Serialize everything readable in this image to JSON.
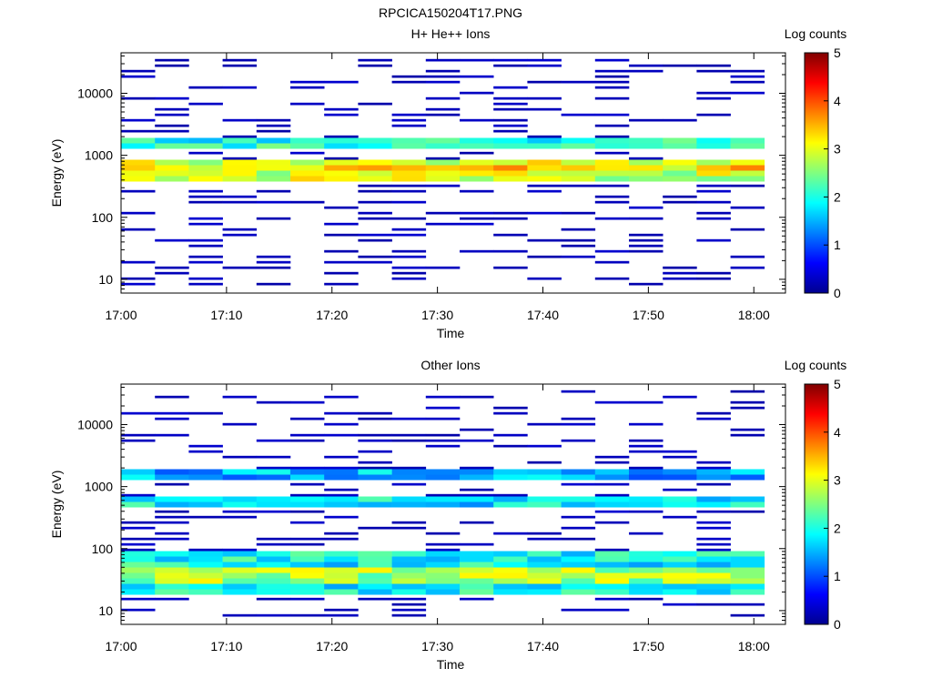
{
  "figure_title": "RPCICA150204T17.PNG",
  "chart_data": [
    {
      "type": "heatmap",
      "title": "H+ He++ Ions",
      "xlabel": "Time",
      "ylabel": "Energy (eV)",
      "x_ticks": [
        "17:00",
        "17:10",
        "17:20",
        "17:30",
        "17:40",
        "17:50",
        "18:00"
      ],
      "y_ticks": [
        "10",
        "100",
        "1000",
        "10000"
      ],
      "y_scale": "log",
      "ylim": [
        6,
        45000
      ],
      "xlim_minutes": [
        0,
        63
      ],
      "colorbar": {
        "label": "Log counts",
        "range": [
          0,
          5
        ],
        "ticks": [
          "0",
          "1",
          "2",
          "3",
          "4",
          "5"
        ]
      },
      "grid": false,
      "bands": [
        {
          "e_min": 1200,
          "e_max": 1800,
          "level": 2.0
        },
        {
          "e_min": 380,
          "e_max": 900,
          "level": 2.9
        },
        {
          "e_min": 550,
          "e_max": 700,
          "level": 3.3
        }
      ],
      "sporadic_level": 0.2
    },
    {
      "type": "heatmap",
      "title": "Other Ions",
      "xlabel": "Time",
      "ylabel": "Energy (eV)",
      "x_ticks": [
        "17:00",
        "17:10",
        "17:20",
        "17:30",
        "17:40",
        "17:50",
        "18:00"
      ],
      "y_ticks": [
        "10",
        "100",
        "1000",
        "10000"
      ],
      "y_scale": "log",
      "ylim": [
        6,
        45000
      ],
      "xlim_minutes": [
        0,
        63
      ],
      "colorbar": {
        "label": "Log counts",
        "range": [
          0,
          5
        ],
        "ticks": [
          "0",
          "1",
          "2",
          "3",
          "4",
          "5"
        ]
      },
      "grid": false,
      "bands": [
        {
          "e_min": 1400,
          "e_max": 1800,
          "level": 1.5
        },
        {
          "e_min": 450,
          "e_max": 700,
          "level": 1.8
        },
        {
          "e_min": 18,
          "e_max": 100,
          "level": 1.9
        },
        {
          "e_min": 25,
          "e_max": 45,
          "level": 2.7
        }
      ],
      "sporadic_level": 0.2
    }
  ]
}
